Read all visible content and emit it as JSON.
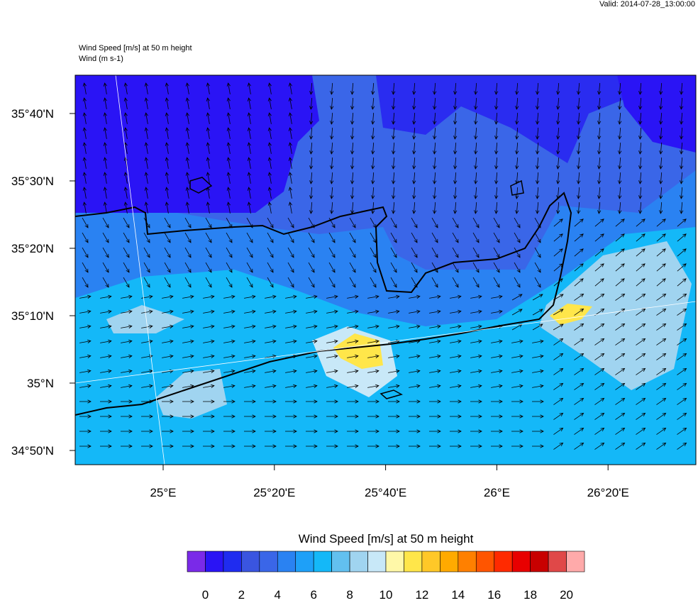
{
  "header": {
    "valid": "Valid: 2014-07-28_13:00:00",
    "title": "Wind Speed [m/s] at 50 m height",
    "subtitle": "Wind   (m s-1)"
  },
  "map": {
    "lat_labels": [
      "35°40'N",
      "35°30'N",
      "35°20'N",
      "35°10'N",
      "35°N",
      "34°50'N"
    ],
    "lon_labels": [
      "25°E",
      "25°20'E",
      "25°40'E",
      "26°E",
      "26°20'E"
    ]
  },
  "colorbar": {
    "title": "Wind Speed [m/s] at 50 m height",
    "labels": [
      0,
      2,
      4,
      6,
      8,
      10,
      12,
      14,
      16,
      18,
      20
    ],
    "colors": [
      "#7a2ae8",
      "#2a14f5",
      "#1f2cf0",
      "#3a55e0",
      "#3a66e8",
      "#2a82f2",
      "#1ea0f8",
      "#14b8f8",
      "#62c0ef",
      "#a0d4f0",
      "#c8e8f8",
      "#fff8a8",
      "#ffe64a",
      "#ffc828",
      "#ffaa00",
      "#ff8000",
      "#ff5500",
      "#ff2a00",
      "#e80000",
      "#c80000",
      "#e04848",
      "#ffaaaa"
    ]
  }
}
